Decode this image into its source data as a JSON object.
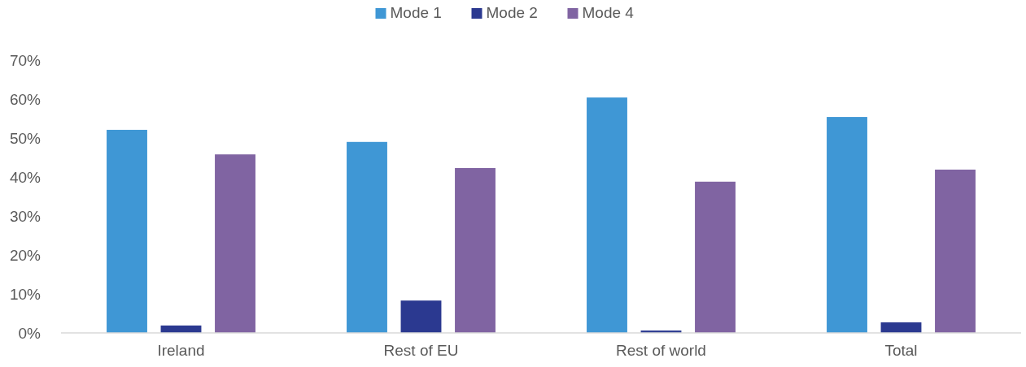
{
  "chart_data": {
    "type": "bar",
    "categories": [
      "Ireland",
      "Rest of EU",
      "Rest of world",
      "Total"
    ],
    "series": [
      {
        "name": "Mode 1",
        "color": "#3f97d5",
        "values": [
          52.1,
          49,
          60.4,
          55.4
        ]
      },
      {
        "name": "Mode 2",
        "color": "#2b3990",
        "values": [
          1.9,
          8.3,
          0.6,
          2.7
        ]
      },
      {
        "name": "Mode 4",
        "color": "#8064a2",
        "values": [
          45.8,
          42.3,
          38.8,
          41.9
        ]
      }
    ],
    "ylim": [
      0,
      70
    ],
    "yticks": [
      {
        "value": 0,
        "label": "0%"
      },
      {
        "value": 10,
        "label": "10%"
      },
      {
        "value": 20,
        "label": "20%"
      },
      {
        "value": 30,
        "label": "30%"
      },
      {
        "value": 40,
        "label": "40%"
      },
      {
        "value": 50,
        "label": "50%"
      },
      {
        "value": 60,
        "label": "60%"
      },
      {
        "value": 70,
        "label": "70%"
      }
    ],
    "grid": false,
    "legend": "top"
  }
}
